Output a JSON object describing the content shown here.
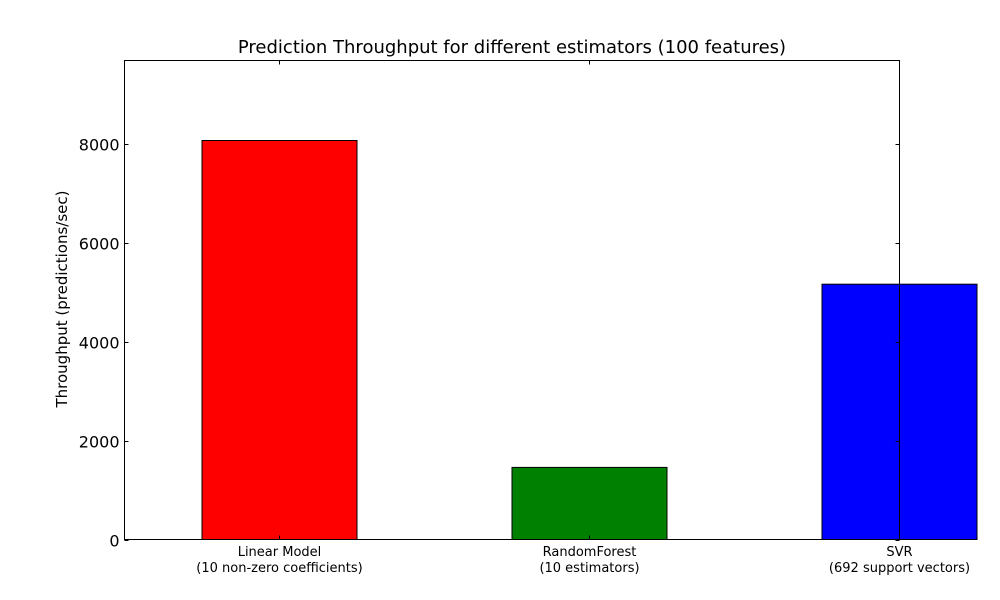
{
  "chart_data": {
    "type": "bar",
    "title": "Prediction Throughput for different estimators (100 features)",
    "xlabel": "",
    "ylabel": "Throughput (predictions/sec)",
    "categories": [
      [
        "Linear Model",
        "(10 non-zero coefficients)"
      ],
      [
        "RandomForest",
        "(10 estimators)"
      ],
      [
        "SVR",
        "(692 support vectors)"
      ]
    ],
    "values": [
      8080,
      1460,
      5170
    ],
    "colors": [
      "#ff0000",
      "#008000",
      "#0000ff"
    ],
    "ylim": [
      0,
      9700
    ],
    "yticks": [
      0,
      2000,
      4000,
      6000,
      8000
    ],
    "xlim": [
      -0.5,
      2.0
    ],
    "bar_width": 0.5,
    "grid": false,
    "legend": "none"
  }
}
